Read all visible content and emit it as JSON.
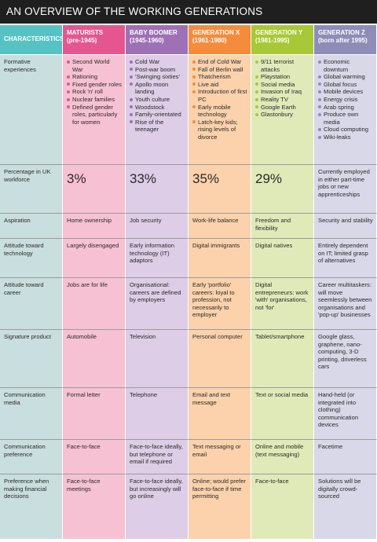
{
  "title": "AN OVERVIEW OF THE WORKING GENERATIONS",
  "headers": [
    {
      "name": "CHARACTERISTICS",
      "range": ""
    },
    {
      "name": "MATURISTS",
      "range": "(pre-1945)"
    },
    {
      "name": "BABY BOOMER",
      "range": "(1945-1960)"
    },
    {
      "name": "GENERATION X",
      "range": "(1961-1980)"
    },
    {
      "name": "GENERATION Y",
      "range": "(1981-1995)"
    },
    {
      "name": "GENERATION Z",
      "range": "(born after 1995)"
    }
  ],
  "formative": {
    "label": "Formative experiences",
    "maturists": [
      "Second World War",
      "Rationing",
      "Fixed gender roles",
      "Rock 'n' roll",
      "Nuclear families",
      "Defined gender roles, particularly for women"
    ],
    "boomer": [
      "Cold War",
      "Post-war boom",
      "'Swinging sixties'",
      "Apollo moon landing",
      "Youth culture",
      "Woodstock",
      "Family-orientated",
      "Rise of the teenager"
    ],
    "genx": [
      "End of Cold War",
      "Fall of Berlin wall",
      "Thatcherism",
      "Live aid",
      "Introduction of first PC",
      "Early mobile technology",
      "Latch-key kids; rising levels of divorce"
    ],
    "geny": [
      "9/11 terrorist attacks",
      "Playstation",
      "Social media",
      "Invasion of Iraq",
      "Reality TV",
      "Google Earth",
      "Glastonbury"
    ],
    "genz": [
      "Economic downturn",
      "Global warming",
      "Global focus",
      "Mobile devices",
      "Energy crisis",
      "Arab spring",
      "Produce own media",
      "Cloud computing",
      "Wiki-leaks"
    ]
  },
  "rows": [
    {
      "key": "percentage",
      "label": "Percentage in UK workforce",
      "values": [
        "3%",
        "33%",
        "35%",
        "29%",
        "Currently employed in either part-time jobs or new apprenticeships"
      ]
    },
    {
      "key": "aspiration",
      "label": "Aspiration",
      "values": [
        "Home ownership",
        "Job security",
        "Work-life balance",
        "Freedom and flexibility",
        "Security and stability"
      ]
    },
    {
      "key": "technology",
      "label": "Attitude toward technology",
      "values": [
        "Largely disengaged",
        "Early information technology (IT) adaptors",
        "Digital immigrants",
        "Digital natives",
        "Entirely dependent on IT; limited grasp of alternatives"
      ]
    },
    {
      "key": "career",
      "label": "Attitude toward career",
      "values": [
        "Jobs are for life",
        "Organisational: careers are defined by employers",
        "Early 'portfolio' careers: loyal to profession, not necessarily to employer",
        "Digital entrepreneurs: work 'with' organisations, not 'for'",
        "Career multitaskers: will move seemlessly between organisations and 'pop-up' businesses"
      ]
    },
    {
      "key": "product",
      "label": "Signature product",
      "values": [
        "Automobile",
        "Television",
        "Personal computer",
        "Tablet/smartphone",
        "Google glass, graphene, nano-computing, 3-D printing, driverless cars"
      ]
    },
    {
      "key": "media",
      "label": "Communication media",
      "values": [
        "Formal letter",
        "Telephone",
        "Email and text message",
        "Text or social media",
        "Hand-held (or integrated into clothing) communication devices"
      ]
    },
    {
      "key": "preference",
      "label": "Communication preference",
      "values": [
        "Face-to-face",
        "Face-to-face ideally, but telephone or email if required",
        "Text messaging or email",
        "Online and mobile (text messaging)",
        "Facetime"
      ]
    },
    {
      "key": "financial",
      "label": "Preference when making financial decisions",
      "values": [
        "Face-to-face meetings",
        "Face-to-face ideally, but increasingly will go online",
        "Online; would prefer face-to-face if time permitting",
        "Face-to-face",
        "Solutions will be digitally crowd-sourced"
      ]
    }
  ]
}
